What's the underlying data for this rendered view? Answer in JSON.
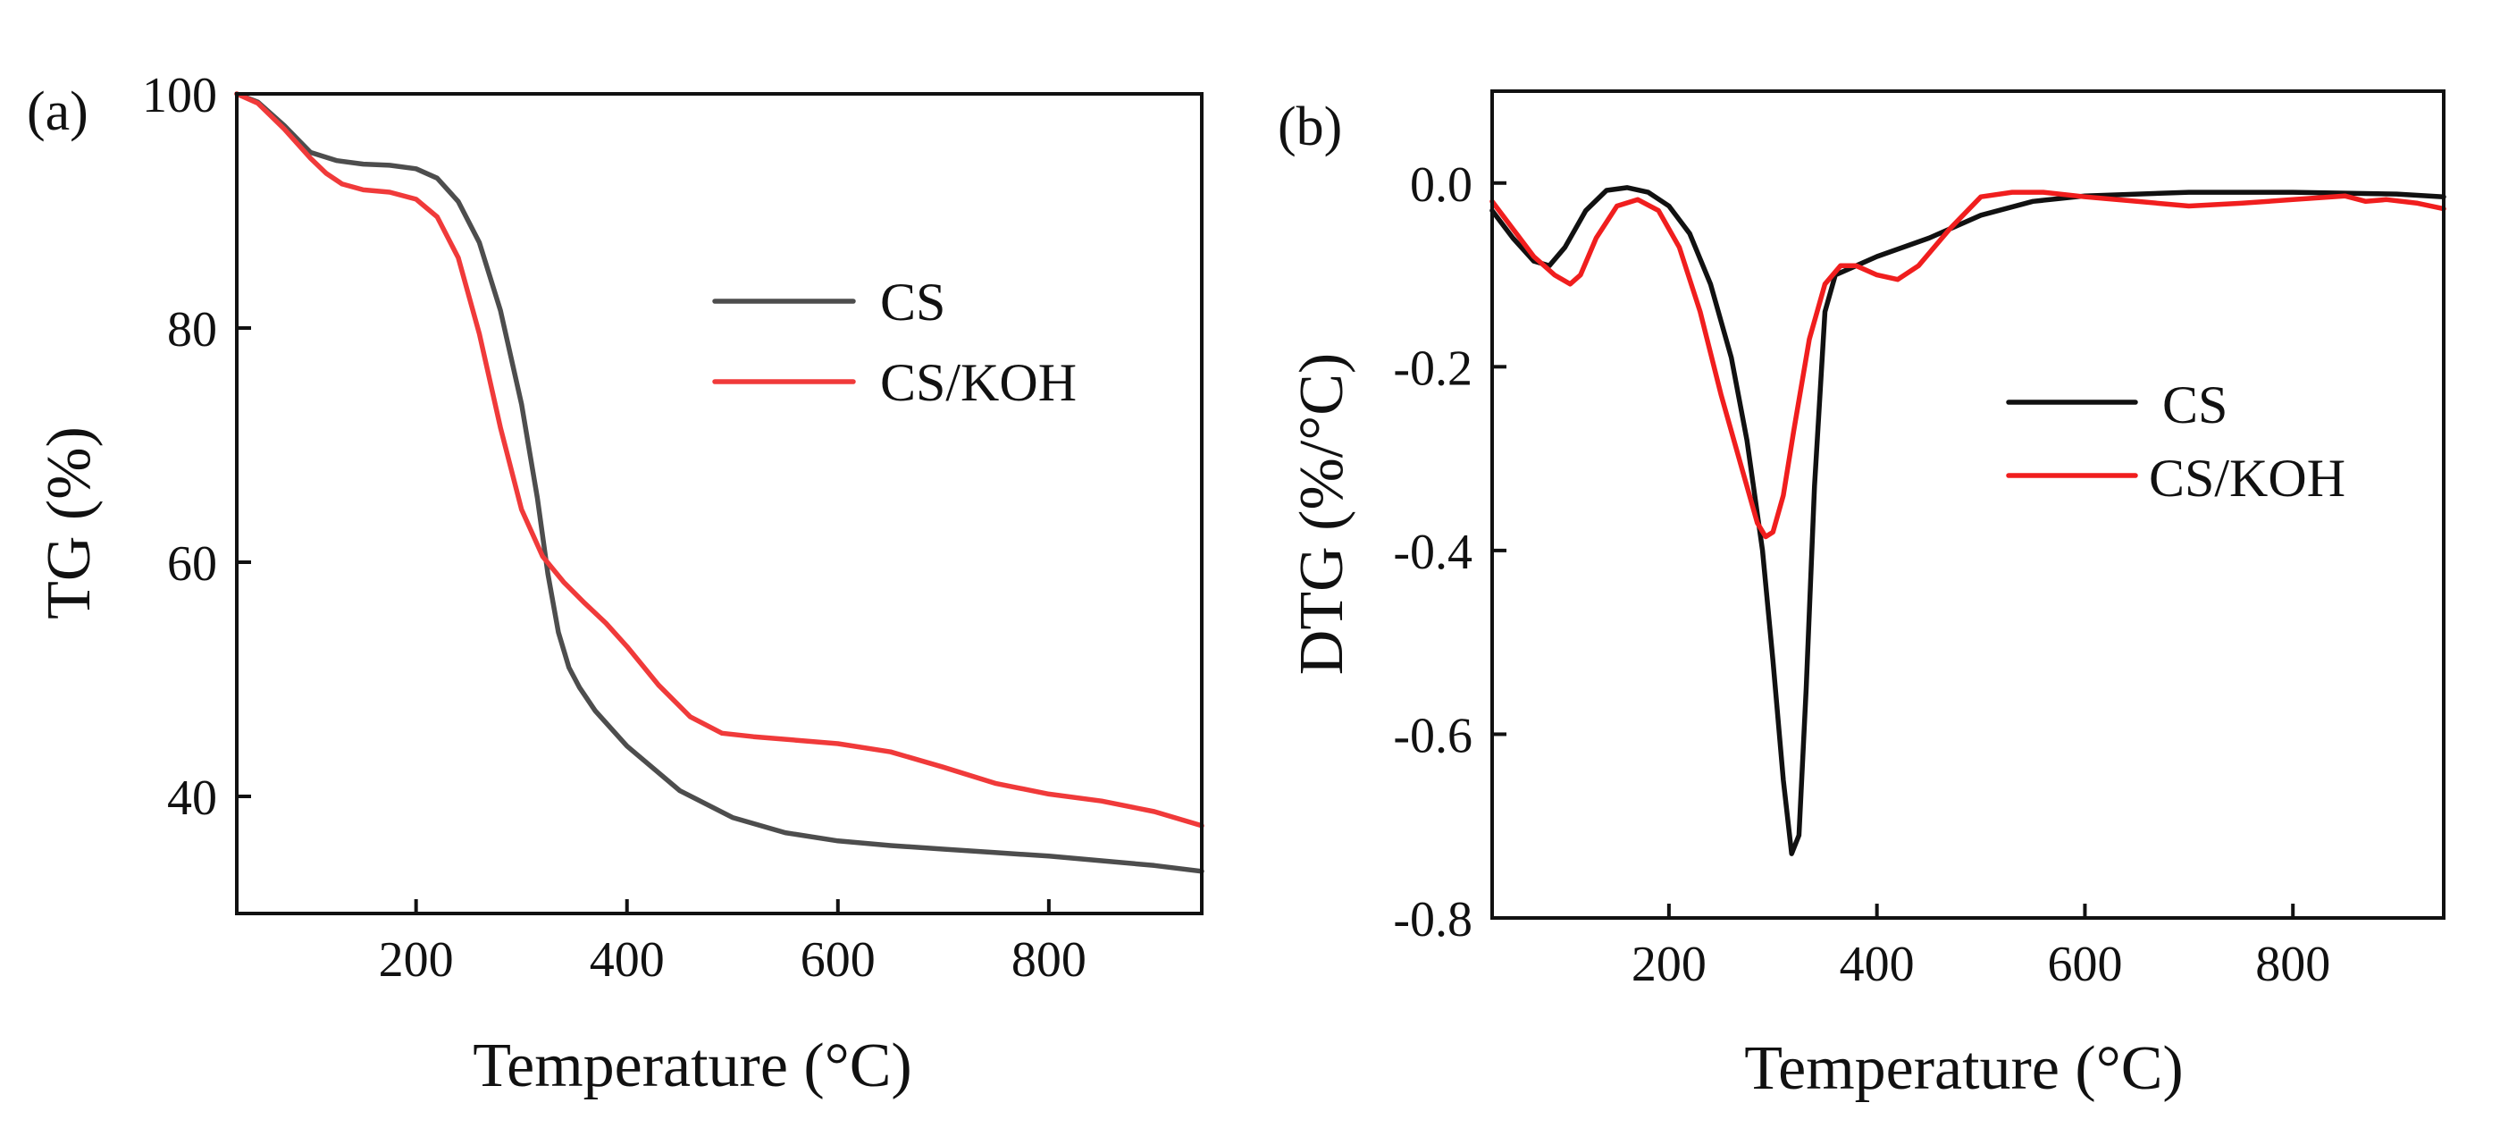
{
  "chart_data": [
    {
      "type": "line",
      "panel_label": "(a)",
      "title": "",
      "xlabel": "Temperature (°C)",
      "ylabel": "TG (%)",
      "xlim": [
        30,
        945
      ],
      "ylim": [
        30,
        100
      ],
      "xticks": [
        200,
        400,
        600,
        800
      ],
      "yticks": [
        40,
        60,
        80,
        100
      ],
      "legend_position": "upper-right",
      "series": [
        {
          "name": "CS",
          "color": "#4d4d4d",
          "x": [
            30,
            50,
            75,
            100,
            125,
            150,
            175,
            200,
            220,
            240,
            260,
            280,
            300,
            315,
            325,
            335,
            345,
            355,
            370,
            400,
            450,
            500,
            550,
            600,
            650,
            700,
            750,
            800,
            850,
            900,
            945
          ],
          "y": [
            100,
            99.3,
            97.3,
            95,
            94.3,
            94,
            93.9,
            93.6,
            92.8,
            90.8,
            87.3,
            81.5,
            73.5,
            65.5,
            59,
            54,
            51,
            49.3,
            47.3,
            44.3,
            40.5,
            38.2,
            36.9,
            36.2,
            35.8,
            35.5,
            35.2,
            34.9,
            34.5,
            34.1,
            33.6
          ]
        },
        {
          "name": "CS/KOH",
          "color": "#f03a3a",
          "x": [
            30,
            50,
            75,
            100,
            115,
            130,
            150,
            175,
            200,
            220,
            240,
            260,
            280,
            300,
            320,
            340,
            360,
            380,
            400,
            430,
            460,
            490,
            520,
            560,
            600,
            650,
            700,
            750,
            800,
            850,
            900,
            945
          ],
          "y": [
            100,
            99.2,
            97,
            94.5,
            93.2,
            92.3,
            91.8,
            91.6,
            91,
            89.5,
            86,
            79.5,
            71.5,
            64.5,
            60.5,
            58.3,
            56.5,
            54.8,
            52.8,
            49.5,
            46.8,
            45.4,
            45.1,
            44.8,
            44.5,
            43.8,
            42.5,
            41.1,
            40.2,
            39.6,
            38.7,
            37.5
          ]
        }
      ]
    },
    {
      "type": "line",
      "panel_label": "(b)",
      "title": "",
      "xlabel": "Temperature (°C)",
      "ylabel": "DTG (%/°C)",
      "xlim": [
        30,
        945
      ],
      "ylim": [
        -0.8,
        0.1
      ],
      "xticks": [
        200,
        400,
        600,
        800
      ],
      "yticks": [
        0.0,
        -0.2,
        -0.4,
        -0.6,
        -0.8
      ],
      "ytick_labels": [
        "0.0",
        "-0.2",
        "-0.4",
        "-0.6",
        "-0.8"
      ],
      "legend_position": "right",
      "series": [
        {
          "name": "CS",
          "color": "#111111",
          "x": [
            30,
            50,
            70,
            85,
            100,
            120,
            140,
            160,
            180,
            200,
            220,
            240,
            260,
            275,
            290,
            300,
            310,
            318,
            325,
            332,
            340,
            350,
            360,
            380,
            400,
            450,
            500,
            550,
            600,
            700,
            800,
            900,
            945
          ],
          "y": [
            -0.03,
            -0.06,
            -0.085,
            -0.09,
            -0.07,
            -0.03,
            -0.008,
            -0.005,
            -0.01,
            -0.025,
            -0.055,
            -0.11,
            -0.19,
            -0.28,
            -0.4,
            -0.52,
            -0.65,
            -0.73,
            -0.71,
            -0.55,
            -0.33,
            -0.14,
            -0.1,
            -0.09,
            -0.08,
            -0.06,
            -0.035,
            -0.02,
            -0.014,
            -0.01,
            -0.01,
            -0.012,
            -0.015
          ]
        },
        {
          "name": "CS/KOH",
          "color": "#f01e1e",
          "x": [
            30,
            50,
            70,
            90,
            105,
            115,
            130,
            150,
            170,
            190,
            210,
            230,
            250,
            270,
            285,
            293,
            300,
            310,
            320,
            335,
            350,
            365,
            380,
            400,
            420,
            440,
            470,
            500,
            530,
            560,
            600,
            650,
            700,
            750,
            800,
            850,
            870,
            890,
            920,
            945
          ],
          "y": [
            -0.02,
            -0.05,
            -0.08,
            -0.1,
            -0.11,
            -0.1,
            -0.06,
            -0.025,
            -0.018,
            -0.03,
            -0.07,
            -0.14,
            -0.23,
            -0.31,
            -0.37,
            -0.385,
            -0.38,
            -0.34,
            -0.27,
            -0.17,
            -0.11,
            -0.09,
            -0.09,
            -0.1,
            -0.105,
            -0.09,
            -0.05,
            -0.015,
            -0.01,
            -0.01,
            -0.015,
            -0.02,
            -0.025,
            -0.022,
            -0.018,
            -0.014,
            -0.02,
            -0.018,
            -0.022,
            -0.028
          ]
        }
      ]
    }
  ]
}
